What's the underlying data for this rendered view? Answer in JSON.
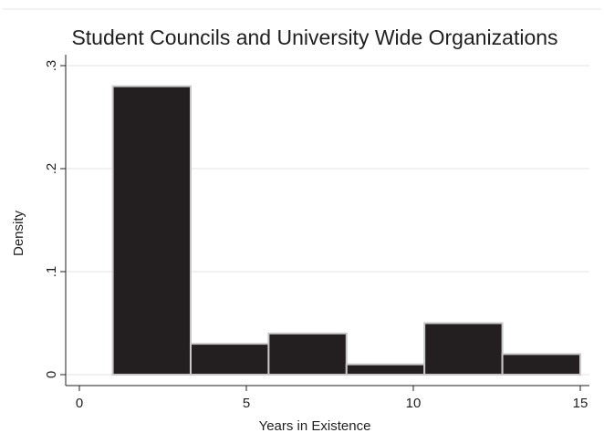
{
  "chart_data": {
    "type": "bar",
    "title": "Student Councils and University Wide Organizations",
    "xlabel": "Years in Existence",
    "ylabel": "Density",
    "xlim": [
      0,
      15
    ],
    "ylim": [
      0,
      0.3
    ],
    "x_ticks": [
      {
        "value": 0,
        "label": "0"
      },
      {
        "value": 5,
        "label": "5"
      },
      {
        "value": 10,
        "label": "10"
      },
      {
        "value": 15,
        "label": "15"
      }
    ],
    "y_ticks": [
      {
        "value": 0,
        "label": "0"
      },
      {
        "value": 0.1,
        "label": ".1"
      },
      {
        "value": 0.2,
        "label": ".2"
      },
      {
        "value": 0.3,
        "label": ".3"
      }
    ],
    "bins": [
      {
        "start": 1.0,
        "end": 3.333,
        "value": 0.28
      },
      {
        "start": 3.333,
        "end": 5.667,
        "value": 0.03
      },
      {
        "start": 5.667,
        "end": 8.0,
        "value": 0.04
      },
      {
        "start": 8.0,
        "end": 10.333,
        "value": 0.01
      },
      {
        "start": 10.333,
        "end": 12.667,
        "value": 0.05
      },
      {
        "start": 12.667,
        "end": 15.0,
        "value": 0.02
      }
    ],
    "grid": true,
    "bar_color": "#231f20",
    "bar_edge_color": "#c8c8c8"
  }
}
